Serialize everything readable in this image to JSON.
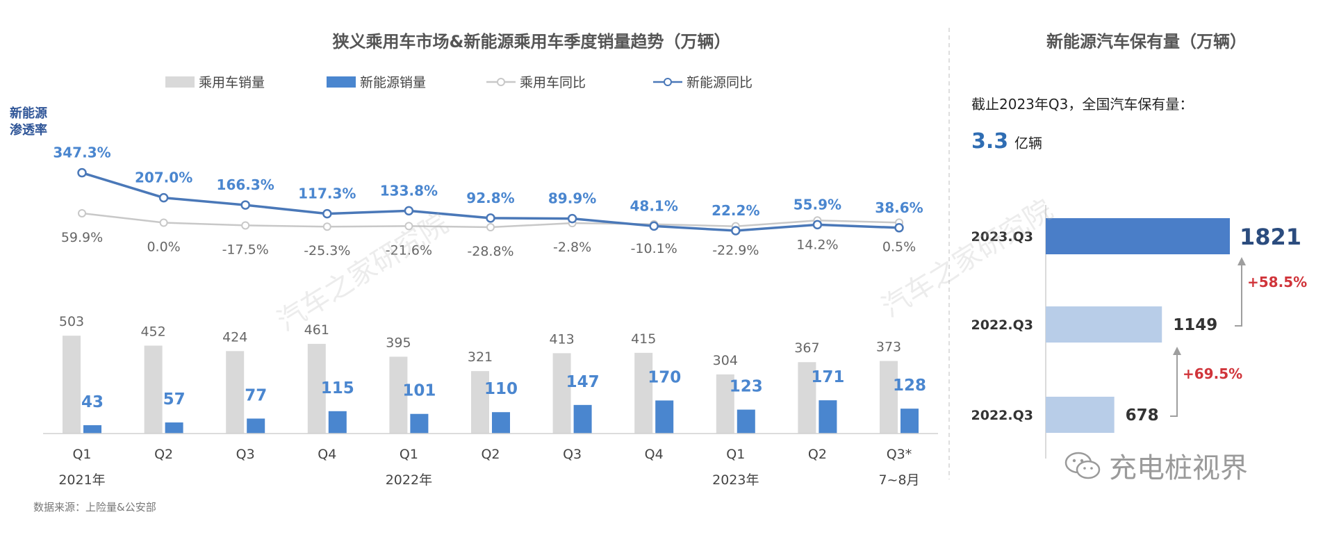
{
  "left_chart": {
    "title": "狭义乘用车市场&新能源乘用车季度销量趋势（万辆）",
    "penetration_label_line1": "新能源",
    "penetration_label_line2": "渗透率",
    "source": "数据来源：上险量&公安部",
    "colors": {
      "passenger_bar": "#d9d9d9",
      "nev_bar": "#4a86cf",
      "passenger_line": "#c8c8c8",
      "nev_line": "#4a78b8",
      "nev_label": "#4a86cf",
      "passenger_label": "#666666"
    }
  },
  "right_chart": {
    "title": "新能源汽车保有量（万辆）",
    "subtitle": "截止2023年Q3，全国汽车保有量：",
    "total_value": "3.3",
    "total_unit": "亿辆",
    "growth": [
      "+58.5%",
      "+69.5%"
    ],
    "colors": {
      "top_bar": "#4a7ec8",
      "other_bars": "#b8cde8",
      "growth": "#d0343a",
      "total": "#2f6db3"
    }
  },
  "watermark": {
    "brand": "充电桩视界",
    "diagonal": "汽车之家研究院"
  },
  "chart_data": [
    {
      "type": "bar",
      "categories": [
        "Q1",
        "Q2",
        "Q3",
        "Q4",
        "Q1",
        "Q2",
        "Q3",
        "Q4",
        "Q1",
        "Q2",
        "Q3*"
      ],
      "year_labels": [
        {
          "label": "2021年",
          "index": 0
        },
        {
          "label": "2022年",
          "index": 4
        },
        {
          "label": "2023年",
          "index": 8
        },
        {
          "label": "7~8月",
          "index": 10
        }
      ],
      "legend": [
        "乘用车销量",
        "新能源销量",
        "乘用车同比",
        "新能源同比"
      ],
      "legend_position": "top",
      "bar_series": [
        {
          "name": "乘用车销量",
          "values": [
            503,
            452,
            424,
            461,
            395,
            321,
            413,
            415,
            304,
            367,
            373
          ]
        },
        {
          "name": "新能源销量",
          "values": [
            43,
            57,
            77,
            115,
            101,
            110,
            147,
            170,
            123,
            171,
            128
          ]
        }
      ],
      "line_series": [
        {
          "name": "乘用车同比",
          "values": [
            59.9,
            0.0,
            -17.5,
            -25.3,
            -21.6,
            -28.8,
            -2.8,
            -10.1,
            -22.9,
            14.2,
            0.5
          ],
          "labels": [
            "59.9%",
            "0.0%",
            "-17.5%",
            "-25.3%",
            "-21.6%",
            "-28.8%",
            "-2.8%",
            "-10.1%",
            "-22.9%",
            "14.2%",
            "0.5%"
          ]
        },
        {
          "name": "新能源同比",
          "values": [
            347.3,
            207.0,
            166.3,
            117.3,
            133.8,
            92.8,
            89.9,
            48.1,
            22.2,
            55.9,
            38.6
          ],
          "labels": [
            "347.3%",
            "207.0%",
            "166.3%",
            "117.3%",
            "133.8%",
            "92.8%",
            "89.9%",
            "48.1%",
            "22.2%",
            "55.9%",
            "38.6%"
          ]
        }
      ],
      "grid": false
    },
    {
      "type": "bar",
      "orientation": "horizontal",
      "categories": [
        "2023.Q3",
        "2022.Q3",
        "2022.Q3"
      ],
      "values": [
        1821,
        1149,
        678
      ],
      "grid": false
    }
  ]
}
